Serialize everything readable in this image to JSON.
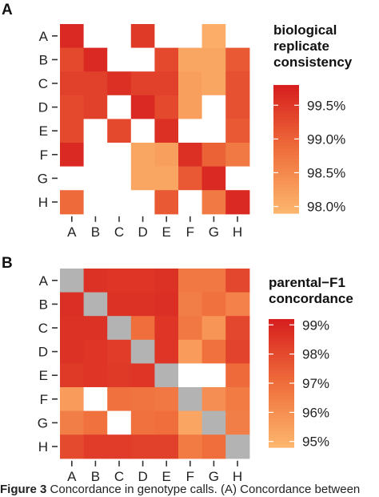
{
  "panels": [
    {
      "letter": "A",
      "legend_title": [
        "biological",
        "replicate",
        "consistency"
      ]
    },
    {
      "letter": "B",
      "legend_title": [
        "parental−F1",
        "concordance"
      ]
    }
  ],
  "caption": {
    "label": "Figure 3",
    "text": " Concordance in genotype calls. (A) Concordance between"
  },
  "colors": {
    "low": "#fdb56e",
    "mid": "#ef6e3b",
    "high": "#d7201f",
    "diagonal": "#b3b3b3",
    "missing": "#ffffff"
  },
  "chart_data": [
    {
      "type": "heatmap",
      "title": "",
      "legend_title": "biological replicate consistency",
      "x_categories": [
        "A",
        "B",
        "C",
        "D",
        "E",
        "F",
        "G",
        "H"
      ],
      "y_categories": [
        "A",
        "B",
        "C",
        "D",
        "E",
        "F",
        "G",
        "H"
      ],
      "color_range": [
        97.9,
        99.8
      ],
      "legend_ticks": [
        "99.5%",
        "99.0%",
        "98.5%",
        "98.0%"
      ],
      "legend_tick_values": [
        99.5,
        99.0,
        98.5,
        98.0
      ],
      "values": [
        [
          99.7,
          null,
          null,
          99.5,
          null,
          null,
          98.0,
          null
        ],
        [
          99.3,
          99.7,
          null,
          null,
          99.3,
          98.1,
          98.1,
          99.1
        ],
        [
          99.4,
          99.4,
          99.6,
          99.4,
          99.4,
          98.2,
          98.1,
          99.2
        ],
        [
          99.3,
          99.4,
          null,
          99.7,
          99.3,
          98.2,
          null,
          99.2
        ],
        [
          99.3,
          null,
          99.3,
          null,
          99.6,
          null,
          null,
          99.1
        ],
        [
          99.7,
          null,
          null,
          98.1,
          98.2,
          99.6,
          99.0,
          98.7
        ],
        [
          null,
          null,
          null,
          98.1,
          98.1,
          99.1,
          99.7,
          null
        ],
        [
          98.9,
          null,
          null,
          null,
          99.1,
          null,
          98.7,
          99.7
        ]
      ]
    },
    {
      "type": "heatmap",
      "title": "",
      "legend_title": "parental−F1 concordance",
      "x_categories": [
        "A",
        "B",
        "C",
        "D",
        "E",
        "F",
        "G",
        "H"
      ],
      "y_categories": [
        "A",
        "B",
        "C",
        "D",
        "E",
        "F",
        "G",
        "H"
      ],
      "color_range": [
        94.8,
        99.2
      ],
      "legend_ticks": [
        "99%",
        "98%",
        "97%",
        "96%",
        "95%"
      ],
      "legend_tick_values": [
        99,
        98,
        97,
        96,
        95
      ],
      "diagonal": "grey",
      "values": [
        [
          null,
          98.7,
          98.6,
          98.6,
          98.7,
          96.7,
          96.7,
          98.1
        ],
        [
          98.8,
          null,
          98.7,
          98.7,
          98.8,
          96.5,
          96.9,
          96.4
        ],
        [
          98.7,
          98.7,
          null,
          97.0,
          98.6,
          96.7,
          95.8,
          98.1
        ],
        [
          98.7,
          98.6,
          98.4,
          null,
          98.6,
          95.6,
          96.9,
          98.2
        ],
        [
          98.5,
          98.6,
          98.5,
          98.6,
          null,
          null,
          null,
          97.1
        ],
        [
          95.6,
          null,
          96.9,
          96.8,
          96.7,
          null,
          96.0,
          96.6
        ],
        [
          96.5,
          96.9,
          null,
          96.9,
          97.0,
          95.3,
          null,
          96.5
        ],
        [
          98.0,
          98.4,
          98.4,
          98.3,
          98.3,
          96.6,
          97.0,
          null
        ]
      ]
    }
  ]
}
